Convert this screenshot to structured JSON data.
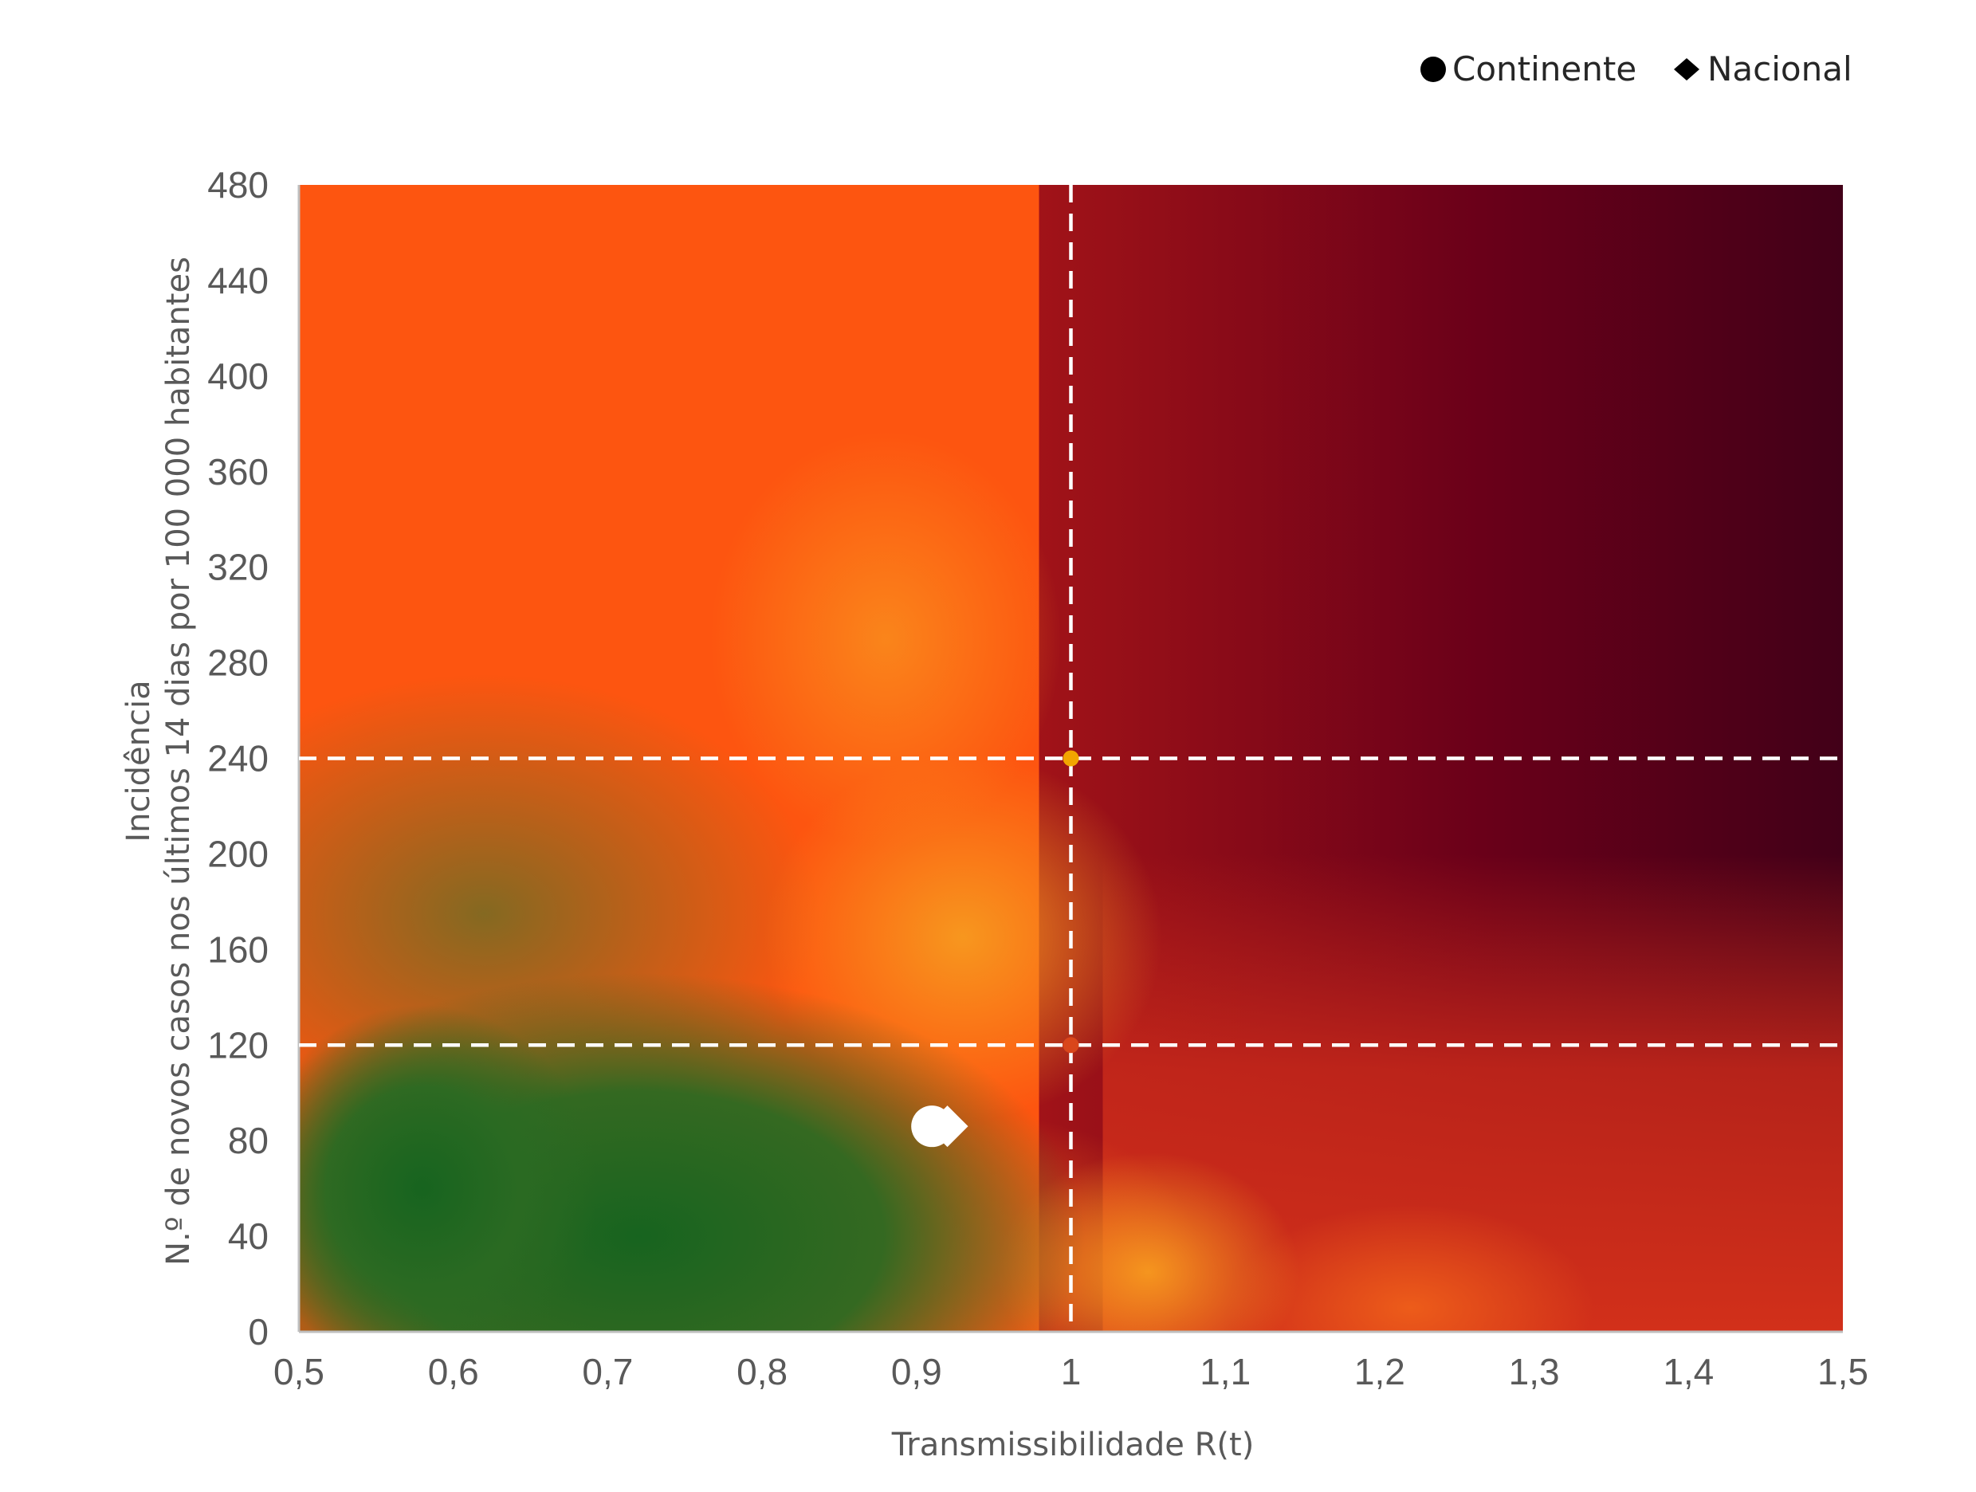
{
  "chart_data": {
    "type": "scatter",
    "title": "",
    "xlabel": "Transmissibilidade R(t)",
    "ylabel_lines": [
      "Incidência",
      "N.º de novos casos nos últimos 14 dias por 100 000 habitantes"
    ],
    "xlim": [
      0.5,
      1.5
    ],
    "ylim": [
      0,
      480
    ],
    "x_ticks": [
      {
        "value": 0.5,
        "label": "0,5"
      },
      {
        "value": 0.6,
        "label": "0,6"
      },
      {
        "value": 0.7,
        "label": "0,7"
      },
      {
        "value": 0.8,
        "label": "0,8"
      },
      {
        "value": 0.9,
        "label": "0,9"
      },
      {
        "value": 1.0,
        "label": "1"
      },
      {
        "value": 1.1,
        "label": "1,1"
      },
      {
        "value": 1.2,
        "label": "1,2"
      },
      {
        "value": 1.3,
        "label": "1,3"
      },
      {
        "value": 1.4,
        "label": "1,4"
      },
      {
        "value": 1.5,
        "label": "1,5"
      }
    ],
    "y_ticks": [
      {
        "value": 0,
        "label": "0"
      },
      {
        "value": 40,
        "label": "40"
      },
      {
        "value": 80,
        "label": "80"
      },
      {
        "value": 120,
        "label": "120"
      },
      {
        "value": 160,
        "label": "160"
      },
      {
        "value": 200,
        "label": "200"
      },
      {
        "value": 240,
        "label": "240"
      },
      {
        "value": 280,
        "label": "280"
      },
      {
        "value": 320,
        "label": "320"
      },
      {
        "value": 360,
        "label": "360"
      },
      {
        "value": 400,
        "label": "400"
      },
      {
        "value": 440,
        "label": "440"
      },
      {
        "value": 480,
        "label": "480"
      }
    ],
    "reference_lines": {
      "vertical_x": [
        1.0
      ],
      "horizontal_y": [
        120,
        240
      ],
      "style": "dashed",
      "color": "#ffffff"
    },
    "reference_markers": [
      {
        "x": 1.0,
        "y": 240,
        "color": "#f2a500"
      },
      {
        "x": 1.0,
        "y": 120,
        "color": "#d9461b"
      }
    ],
    "series": [
      {
        "name": "Continente",
        "marker": "circle",
        "x": 0.91,
        "y": 86,
        "color": "#ffffff"
      },
      {
        "name": "Nacional",
        "marker": "diamond",
        "x": 0.92,
        "y": 86,
        "color": "#ffffff"
      }
    ],
    "legend": {
      "position": "top-right",
      "entries": [
        {
          "label": "Continente",
          "marker": "circle",
          "color": "#000000"
        },
        {
          "label": "Nacional",
          "marker": "diamond",
          "color": "#000000"
        }
      ]
    },
    "background_colors": {
      "green": "#1b6620",
      "yellow": "#e39a22",
      "orange": "#fd5510",
      "red": "#c8291a",
      "dark_red": "#420018"
    },
    "grid": false
  }
}
